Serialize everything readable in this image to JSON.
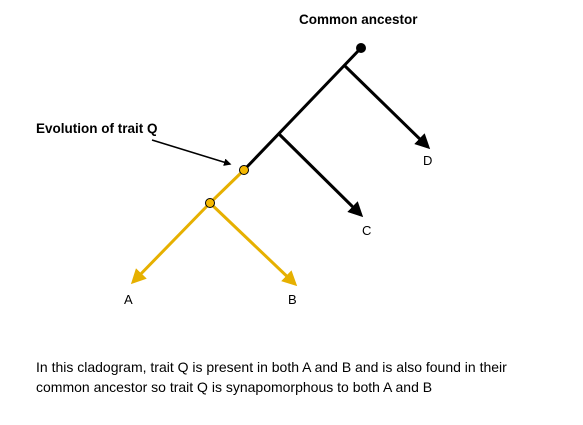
{
  "title": "Common ancestor",
  "trait_label": "Evolution of trait Q",
  "tips": {
    "a": "A",
    "b": "B",
    "c": "C",
    "d": "D"
  },
  "caption": "In this cladogram, trait Q is present in both A and B and is also found in their common ancestor so trait Q is synapomorphous to both A and B",
  "colors": {
    "ancestral_lineage": "#000000",
    "trait_lineage": "#e6b000",
    "node_fill": "#f5b800"
  }
}
